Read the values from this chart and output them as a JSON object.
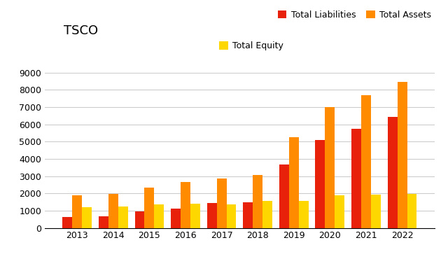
{
  "title": "TSCO",
  "years": [
    2013,
    2014,
    2015,
    2016,
    2017,
    2018,
    2019,
    2020,
    2021,
    2022
  ],
  "total_liabilities": [
    620,
    680,
    960,
    1130,
    1440,
    1500,
    3680,
    5100,
    5750,
    6420
  ],
  "total_assets": [
    1870,
    1990,
    2330,
    2640,
    2850,
    3050,
    5250,
    7000,
    7700,
    8450
  ],
  "total_equity": [
    1200,
    1230,
    1360,
    1420,
    1380,
    1560,
    1560,
    1880,
    1940,
    1980
  ],
  "color_liabilities": "#e8220a",
  "color_assets": "#ff8c00",
  "color_equity": "#ffd700",
  "legend_labels": [
    "Total Liabilities",
    "Total Assets",
    "Total Equity"
  ],
  "ylim": [
    0,
    9000
  ],
  "yticks": [
    0,
    1000,
    2000,
    3000,
    4000,
    5000,
    6000,
    7000,
    8000,
    9000
  ],
  "title_fontsize": 13,
  "legend_fontsize": 9,
  "tick_fontsize": 9,
  "bar_width": 0.27,
  "background_color": "#ffffff",
  "grid_color": "#cccccc"
}
